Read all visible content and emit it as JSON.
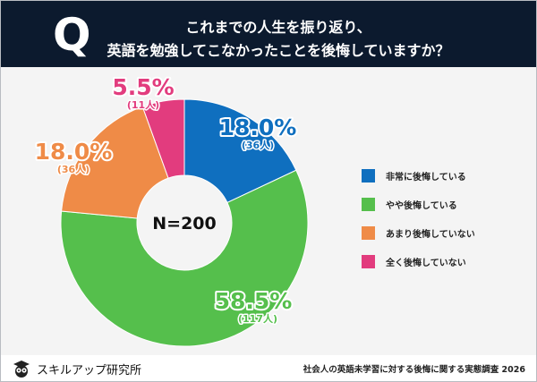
{
  "header": {
    "q_mark": "Q",
    "question_line1": "これまでの人生を振り返り、",
    "question_line2": "英語を勉強してこなかったことを後悔していますか？"
  },
  "chart_data": {
    "type": "pie",
    "donut": true,
    "center_label": "N=200",
    "categories": [
      "非常に後悔している",
      "やや後悔している",
      "あまり後悔していない",
      "全く後悔していない"
    ],
    "values": [
      18.0,
      58.5,
      18.0,
      5.5
    ],
    "value_labels": [
      "18.0%",
      "58.5%",
      "18.0%",
      "5.5%"
    ],
    "counts": [
      "(36人)",
      "(117人)",
      "(36人)",
      "(11人)"
    ],
    "colors": [
      "#0f6fbf",
      "#55bf4c",
      "#ef8b47",
      "#e23c7e"
    ],
    "start": "top",
    "direction": "clockwise",
    "legend_position": "right"
  },
  "footer": {
    "brand": "スキルアップ研究所",
    "source": "社会人の英語未学習に対する後悔に関する実態調査 2026"
  }
}
